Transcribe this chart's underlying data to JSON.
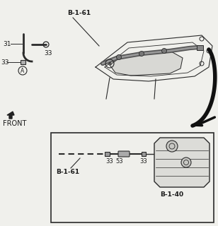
{
  "bg_color": "#f0f0ec",
  "line_color": "#2a2a2a",
  "label_color": "#1a1a1a",
  "labels": {
    "B_1_61_top": "B-1-61",
    "B_1_61_box": "B-1-61",
    "B_1_40": "B-1-40",
    "num_31": "31",
    "num_33a": "33",
    "num_33b": "33",
    "num_33c": "33",
    "num_53": "53",
    "FRONT": "FRONT",
    "A": "A"
  }
}
